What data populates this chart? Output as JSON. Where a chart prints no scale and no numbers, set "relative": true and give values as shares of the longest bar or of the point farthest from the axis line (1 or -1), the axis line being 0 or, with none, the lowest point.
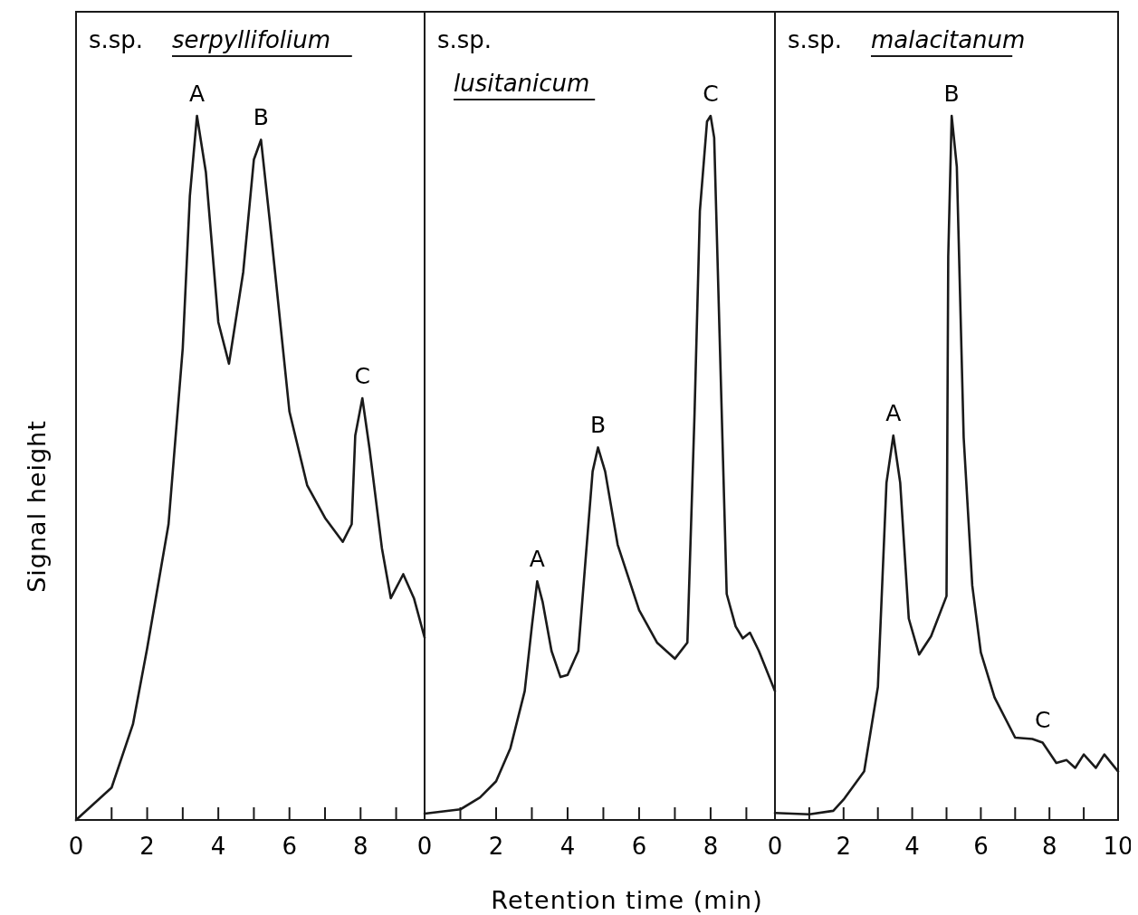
{
  "chart_data": [
    {
      "type": "line",
      "title": "s.sp.",
      "subtitle": "serpyllifolium",
      "ylabel": "Signal height",
      "relative": true,
      "xlim": [
        0,
        9.8
      ],
      "xticks": [
        0,
        {
          "value": 1,
          "label": null
        },
        2,
        {
          "value": 3,
          "label": null
        },
        4,
        {
          "value": 5,
          "label": null
        },
        6,
        {
          "value": 7,
          "label": null
        },
        8,
        {
          "value": 9,
          "label": null
        }
      ],
      "series": [
        {
          "color": "#1a1a1a",
          "x": [
            0,
            1,
            1.6,
            2,
            2.6,
            3,
            3.2,
            3.4,
            3.65,
            4,
            4.3,
            4.7,
            5,
            5.2,
            5.45,
            6,
            6.5,
            7,
            7.5,
            7.75,
            7.85,
            8.05,
            8.25,
            8.6,
            8.85,
            9.2,
            9.5,
            9.8
          ],
          "values": [
            0,
            0.046,
            0.136,
            0.244,
            0.42,
            0.67,
            0.886,
            1,
            0.92,
            0.707,
            0.648,
            0.778,
            0.938,
            0.966,
            0.849,
            0.58,
            0.475,
            0.429,
            0.395,
            0.42,
            0.546,
            0.599,
            0.528,
            0.386,
            0.315,
            0.349,
            0.315,
            0.259
          ]
        }
      ],
      "annotations": [
        {
          "text": "A",
          "x": 3.4,
          "y": 1
        },
        {
          "text": "B",
          "x": 5.2,
          "y": 0.966
        },
        {
          "text": "C",
          "x": 8.05,
          "y": 0.599
        }
      ]
    },
    {
      "type": "line",
      "title": "s.sp.",
      "subtitle": "lusitanicum",
      "xlabel": "Retention time (min)",
      "relative": true,
      "xlim": [
        0,
        9.8
      ],
      "xticks": [
        0,
        {
          "value": 1,
          "label": null
        },
        2,
        {
          "value": 3,
          "label": null
        },
        4,
        {
          "value": 5,
          "label": null
        },
        6,
        {
          "value": 7,
          "label": null
        },
        8,
        {
          "value": 9,
          "label": null
        }
      ],
      "series": [
        {
          "color": "#1a1a1a",
          "x": [
            0,
            1,
            1.55,
            2,
            2.4,
            2.8,
            3,
            3.15,
            3.3,
            3.55,
            3.8,
            4,
            4.3,
            4.5,
            4.7,
            4.85,
            5.05,
            5.4,
            6,
            6.5,
            7,
            7.35,
            7.55,
            7.7,
            7.9,
            8,
            8.1,
            8.25,
            8.45,
            8.7,
            8.9,
            9.1,
            9.35,
            9.8
          ],
          "values": [
            0.009,
            0.015,
            0.032,
            0.055,
            0.102,
            0.183,
            0.275,
            0.339,
            0.31,
            0.24,
            0.203,
            0.206,
            0.24,
            0.368,
            0.495,
            0.529,
            0.495,
            0.391,
            0.298,
            0.252,
            0.229,
            0.252,
            0.576,
            0.865,
            0.992,
            1,
            0.969,
            0.691,
            0.321,
            0.275,
            0.258,
            0.266,
            0.24,
            0.183
          ]
        }
      ],
      "annotations": [
        {
          "text": "A",
          "x": 3.15,
          "y": 0.339
        },
        {
          "text": "B",
          "x": 4.85,
          "y": 0.529
        },
        {
          "text": "C",
          "x": 8,
          "y": 1
        }
      ]
    },
    {
      "type": "line",
      "title": "s.sp.",
      "subtitle": "malacitanum",
      "relative": true,
      "xlim": [
        0,
        10
      ],
      "xticks": [
        0,
        {
          "value": 1,
          "label": null
        },
        2,
        {
          "value": 3,
          "label": null
        },
        4,
        {
          "value": 5,
          "label": null
        },
        6,
        {
          "value": 7,
          "label": null
        },
        8,
        {
          "value": 9,
          "label": null
        },
        10
      ],
      "series": [
        {
          "color": "#1a1a1a",
          "x": [
            0,
            1,
            1.7,
            2,
            2.6,
            3,
            3.25,
            3.45,
            3.65,
            3.9,
            4.2,
            4.55,
            5,
            5.05,
            5.15,
            5.3,
            5.5,
            5.75,
            6,
            6.4,
            7,
            7.5,
            7.8,
            8.2,
            8.5,
            8.75,
            9,
            9.35,
            9.6,
            10
          ],
          "values": [
            0.01,
            0.008,
            0.013,
            0.029,
            0.069,
            0.189,
            0.479,
            0.546,
            0.479,
            0.286,
            0.235,
            0.261,
            0.318,
            0.8,
            1,
            0.928,
            0.543,
            0.333,
            0.238,
            0.174,
            0.117,
            0.115,
            0.11,
            0.081,
            0.085,
            0.074,
            0.093,
            0.074,
            0.093,
            0.069
          ]
        }
      ],
      "annotations": [
        {
          "text": "A",
          "x": 3.45,
          "y": 0.546
        },
        {
          "text": "B",
          "x": 5.15,
          "y": 1
        },
        {
          "text": "C",
          "x": 7.8,
          "y": 0.11
        }
      ]
    }
  ]
}
